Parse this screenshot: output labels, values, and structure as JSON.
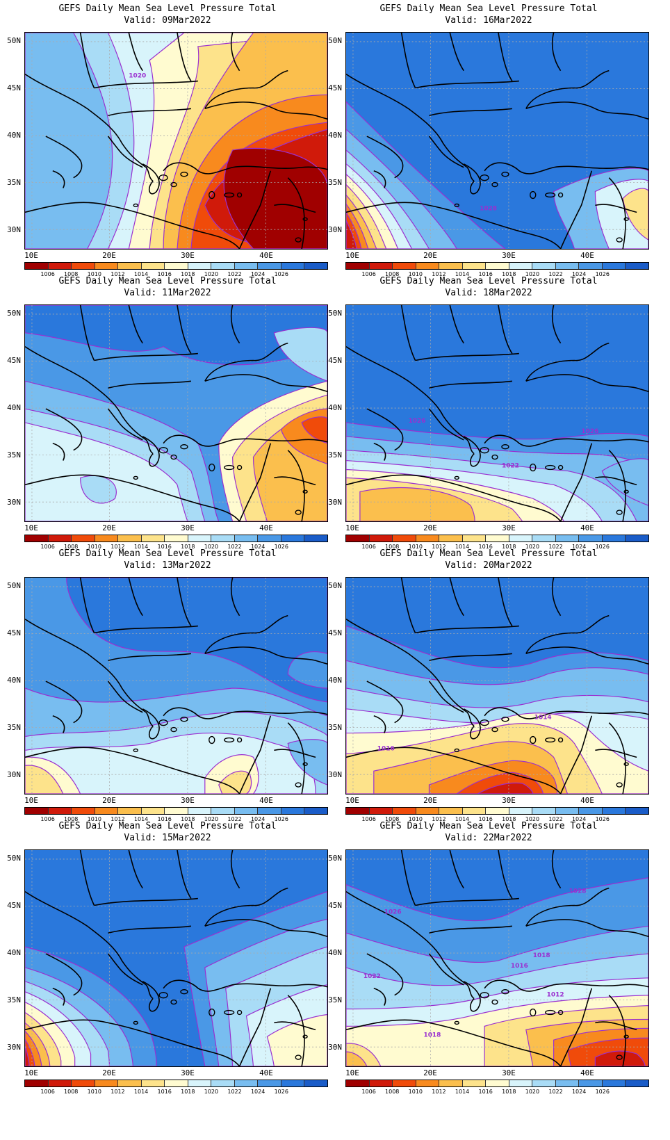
{
  "title_prefix": "GEFS Daily Mean Sea Level Pressure Total",
  "panels": [
    {
      "title": "GEFS Daily Mean Sea Level Pressure Total",
      "valid": "Valid: 09Mar2022",
      "scheme": "warm_east",
      "contour_labels": [
        "1020"
      ]
    },
    {
      "title": "GEFS Daily Mean Sea Level Pressure Total",
      "valid": "Valid: 16Mar2022",
      "scheme": "high_low_sw",
      "contour_labels": [
        "1028"
      ]
    },
    {
      "title": "GEFS Daily Mean Sea Level Pressure Total",
      "valid": "Valid: 11Mar2022",
      "scheme": "high_warm_se",
      "contour_labels": []
    },
    {
      "title": "GEFS Daily Mean Sea Level Pressure Total",
      "valid": "Valid: 18Mar2022",
      "scheme": "high_warm_south",
      "contour_labels": [
        "1026",
        "1026",
        "1022"
      ]
    },
    {
      "title": "GEFS Daily Mean Sea Level Pressure Total",
      "valid": "Valid: 13Mar2022",
      "scheme": "mixed",
      "contour_labels": []
    },
    {
      "title": "GEFS Daily Mean Sea Level Pressure Total",
      "valid": "Valid: 20Mar2022",
      "scheme": "high_low_south",
      "contour_labels": [
        "1014",
        "1016"
      ]
    },
    {
      "title": "GEFS Daily Mean Sea Level Pressure Total",
      "valid": "Valid: 15Mar2022",
      "scheme": "high_low_sw_east",
      "contour_labels": []
    },
    {
      "title": "GEFS Daily Mean Sea Level Pressure Total",
      "valid": "Valid: 22Mar2022",
      "scheme": "high_low_se",
      "contour_labels": [
        "1028",
        "1026",
        "1018",
        "1016",
        "1022",
        "1012",
        "1018"
      ]
    }
  ],
  "y_ticks": [
    "50N",
    "45N",
    "40N",
    "35N",
    "30N"
  ],
  "x_ticks": [
    "10E",
    "20E",
    "30E",
    "40E"
  ],
  "colorbar": {
    "labels": [
      "1006",
      "1008",
      "1010",
      "1012",
      "1014",
      "1016",
      "1018",
      "1020",
      "1022",
      "1024",
      "1026"
    ],
    "colors": [
      "#a00000",
      "#d01a0a",
      "#f04b0a",
      "#f88a1e",
      "#fbbf4d",
      "#fde38b",
      "#fffbd0",
      "#d8f4fb",
      "#a9dcf6",
      "#78bdf0",
      "#4a98e6",
      "#2a78dc",
      "#1a5cc8"
    ]
  },
  "contour_color": "#9a2fd0"
}
